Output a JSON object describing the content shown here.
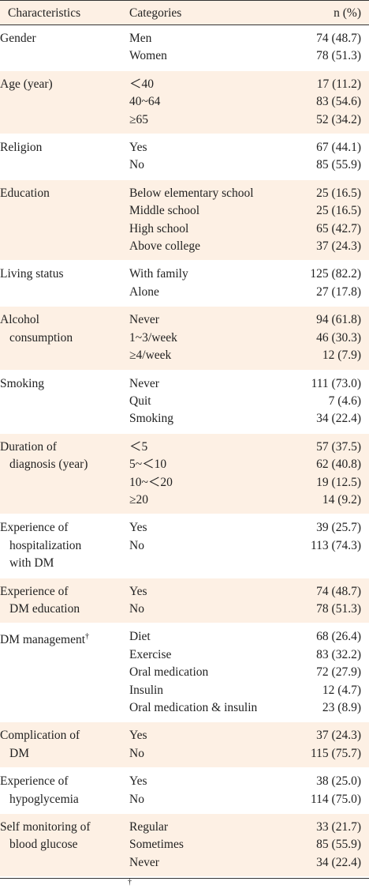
{
  "table": {
    "header": [
      "Characteristics",
      "Categories",
      "n (%)"
    ],
    "groups": [
      {
        "characteristic": [
          "Gender"
        ],
        "categories": [
          "Men",
          "Women"
        ],
        "values": [
          "74 (48.7)",
          "78 (51.3)"
        ]
      },
      {
        "characteristic": [
          "Age (year)"
        ],
        "categories": [
          "＜40",
          "40~64",
          "≥65"
        ],
        "values": [
          "17 (11.2)",
          "83 (54.6)",
          "52 (34.2)"
        ]
      },
      {
        "characteristic": [
          "Religion"
        ],
        "categories": [
          "Yes",
          "No"
        ],
        "values": [
          "67 (44.1)",
          "85 (55.9)"
        ]
      },
      {
        "characteristic": [
          "Education"
        ],
        "categories": [
          "Below elementary school",
          "Middle school",
          "High school",
          "Above college"
        ],
        "values": [
          "25 (16.5)",
          "25 (16.5)",
          "65 (42.7)",
          "37 (24.3)"
        ]
      },
      {
        "characteristic": [
          "Living status"
        ],
        "categories": [
          "With family",
          "Alone"
        ],
        "values": [
          "125 (82.2)",
          "27 (17.8)"
        ]
      },
      {
        "characteristic": [
          "Alcohol",
          "consumption"
        ],
        "categories": [
          "Never",
          "1~3/week",
          "≥4/week"
        ],
        "values": [
          "94 (61.8)",
          "46 (30.3)",
          "12 (7.9)"
        ]
      },
      {
        "characteristic": [
          "Smoking"
        ],
        "categories": [
          "Never",
          "Quit",
          "Smoking"
        ],
        "values": [
          "111 (73.0)",
          "7 (4.6)",
          "34 (22.4)"
        ]
      },
      {
        "characteristic": [
          "Duration of",
          "diagnosis (year)"
        ],
        "categories": [
          "＜5",
          "5~＜10",
          "10~＜20",
          "≥20"
        ],
        "values": [
          "57 (37.5)",
          "62 (40.8)",
          "19 (12.5)",
          "14 (9.2)"
        ]
      },
      {
        "characteristic": [
          "Experience of",
          "hospitalization",
          "with DM"
        ],
        "categories": [
          "Yes",
          "No"
        ],
        "values": [
          "39 (25.7)",
          "113 (74.3)"
        ]
      },
      {
        "characteristic": [
          "Experience of",
          "DM education"
        ],
        "categories": [
          "Yes",
          "No"
        ],
        "values": [
          "74 (48.7)",
          "78 (51.3)"
        ]
      },
      {
        "characteristic": [
          "DM management"
        ],
        "mark": "†",
        "categories": [
          "Diet",
          "Exercise",
          "Oral medication",
          "Insulin",
          "Oral medication & insulin"
        ],
        "values": [
          "68 (26.4)",
          "83 (32.2)",
          "72 (27.9)",
          "12 (4.7)",
          "23 (8.9)"
        ]
      },
      {
        "characteristic": [
          "Complication of",
          "DM"
        ],
        "categories": [
          "Yes",
          "No"
        ],
        "values": [
          "37 (24.3)",
          "115 (75.7)"
        ]
      },
      {
        "characteristic": [
          "Experience of",
          "hypoglycemia"
        ],
        "categories": [
          "Yes",
          "No"
        ],
        "values": [
          "38 (25.0)",
          "114 (75.0)"
        ]
      },
      {
        "characteristic": [
          "Self monitoring of",
          "blood glucose"
        ],
        "categories": [
          "Regular",
          "Sometimes",
          "Never"
        ],
        "values": [
          "33 (21.7)",
          "85 (55.9)",
          "34 (22.4)"
        ]
      }
    ],
    "footnote": "†"
  }
}
